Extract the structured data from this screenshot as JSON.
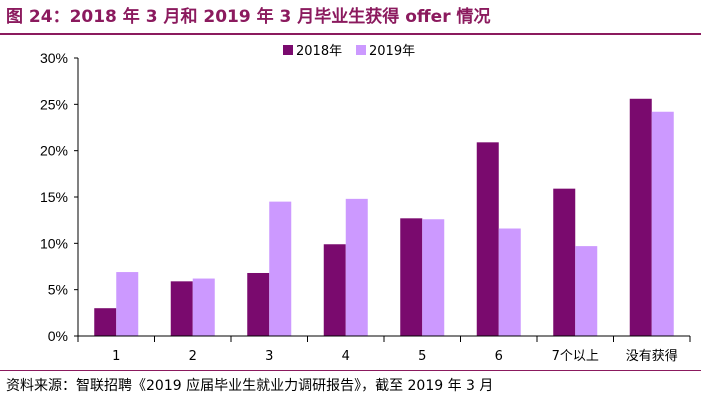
{
  "page": {
    "title": "图 24：2018 年 3 月和 2019 年 3 月毕业生获得 offer 情况",
    "source": "资料来源：智联招聘《2019 应届毕业生就业力调研报告》，截至 2019 年 3 月"
  },
  "colors": {
    "accent": "#8b1a5e",
    "series_2018": "#7a0a6e",
    "series_2019": "#cc99ff"
  },
  "chart_data": {
    "type": "bar",
    "title": "",
    "xlabel": "",
    "ylabel": "",
    "categories": [
      "1",
      "2",
      "3",
      "4",
      "5",
      "6",
      "7个以上",
      "没有获得"
    ],
    "series": [
      {
        "name": "2018年",
        "color": "#7a0a6e",
        "values": [
          3.0,
          5.9,
          6.8,
          9.9,
          12.7,
          20.9,
          15.9,
          25.6
        ]
      },
      {
        "name": "2019年",
        "color": "#cc99ff",
        "values": [
          6.9,
          6.2,
          14.5,
          14.8,
          12.6,
          11.6,
          9.7,
          24.2
        ]
      }
    ],
    "ylim": [
      0,
      30
    ],
    "yticks": [
      "0%",
      "5%",
      "10%",
      "15%",
      "20%",
      "25%",
      "30%"
    ],
    "legend_position": "top-center",
    "grid": false
  }
}
